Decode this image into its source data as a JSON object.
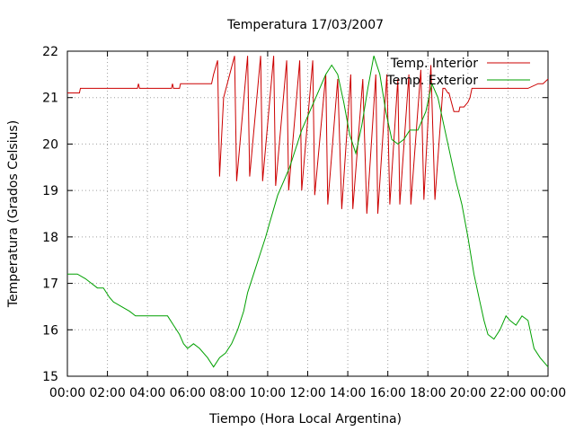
{
  "chart_data": {
    "type": "line",
    "title": "Temperatura 17/03/2007",
    "xlabel": "Tiempo (Hora Local Argentina)",
    "ylabel": "Temperatura (Grados Celsius)",
    "xlim": [
      0,
      24
    ],
    "ylim": [
      15,
      22
    ],
    "x_ticks": [
      "00:00",
      "02:00",
      "04:00",
      "06:00",
      "08:00",
      "10:00",
      "12:00",
      "14:00",
      "16:00",
      "18:00",
      "20:00",
      "22:00",
      "00:00"
    ],
    "y_ticks": [
      "15",
      "16",
      "17",
      "18",
      "19",
      "20",
      "21",
      "22"
    ],
    "grid": true,
    "legend_position": "top-right",
    "series": [
      {
        "name": "Temp. Interior",
        "color": "#cc0000",
        "x": [
          0,
          0.6,
          0.65,
          2.0,
          3.5,
          3.55,
          3.6,
          5.2,
          5.25,
          5.3,
          5.6,
          5.65,
          5.8,
          7.2,
          7.25,
          7.3,
          7.5,
          7.55,
          7.6,
          7.8,
          8.35,
          8.45,
          9.0,
          9.1,
          9.65,
          9.75,
          10.3,
          10.4,
          10.95,
          11.05,
          11.6,
          11.7,
          12.25,
          12.35,
          12.9,
          13.0,
          13.5,
          13.7,
          14.15,
          14.25,
          14.75,
          14.95,
          15.4,
          15.5,
          15.95,
          16.1,
          16.5,
          16.6,
          17.05,
          17.15,
          17.65,
          17.8,
          18.15,
          18.35,
          18.75,
          18.85,
          19.0,
          19.05,
          19.3,
          19.55,
          19.6,
          19.8,
          20.0,
          20.1,
          20.2,
          21.0,
          22.0,
          23.0,
          23.5,
          23.75,
          24.0
        ],
        "values": [
          21.1,
          21.1,
          21.2,
          21.2,
          21.2,
          21.3,
          21.2,
          21.2,
          21.3,
          21.2,
          21.2,
          21.3,
          21.3,
          21.3,
          21.4,
          21.5,
          21.8,
          20.5,
          19.3,
          21.0,
          21.9,
          19.2,
          21.9,
          19.3,
          21.9,
          19.2,
          21.9,
          19.1,
          21.8,
          19.0,
          21.8,
          19.0,
          21.8,
          18.9,
          21.5,
          18.7,
          21.4,
          18.6,
          21.5,
          18.6,
          21.4,
          18.5,
          21.5,
          18.5,
          21.5,
          18.7,
          21.4,
          18.7,
          21.5,
          18.7,
          21.6,
          18.8,
          21.7,
          18.8,
          21.2,
          21.2,
          21.1,
          21.1,
          20.7,
          20.7,
          20.8,
          20.8,
          20.9,
          21.0,
          21.2,
          21.2,
          21.2,
          21.2,
          21.3,
          21.3,
          21.4
        ]
      },
      {
        "name": "Temp. Exterior",
        "color": "#00a000",
        "x": [
          0,
          0.5,
          0.9,
          1.5,
          1.8,
          2.1,
          2.3,
          2.7,
          3.1,
          3.4,
          4.0,
          4.5,
          5.0,
          5.3,
          5.6,
          5.8,
          6.0,
          6.3,
          6.6,
          7.0,
          7.3,
          7.6,
          7.9,
          8.2,
          8.5,
          8.8,
          9.0,
          9.3,
          9.6,
          9.9,
          10.1,
          10.3,
          10.5,
          10.8,
          11.1,
          11.4,
          11.7,
          12.0,
          12.3,
          12.6,
          12.9,
          13.2,
          13.5,
          13.8,
          14.1,
          14.4,
          14.7,
          15.0,
          15.3,
          15.6,
          15.9,
          16.2,
          16.5,
          16.8,
          17.1,
          17.5,
          17.9,
          18.2,
          18.5,
          18.8,
          19.1,
          19.4,
          19.7,
          20.0,
          20.3,
          20.6,
          20.8,
          21.0,
          21.3,
          21.6,
          21.9,
          22.1,
          22.4,
          22.7,
          23.0,
          23.3,
          23.6,
          24.0
        ],
        "values": [
          17.2,
          17.2,
          17.1,
          16.9,
          16.9,
          16.7,
          16.6,
          16.5,
          16.4,
          16.3,
          16.3,
          16.3,
          16.3,
          16.1,
          15.9,
          15.7,
          15.6,
          15.7,
          15.6,
          15.4,
          15.2,
          15.4,
          15.5,
          15.7,
          16.0,
          16.4,
          16.8,
          17.2,
          17.6,
          18.0,
          18.3,
          18.6,
          18.9,
          19.2,
          19.5,
          19.9,
          20.3,
          20.6,
          20.9,
          21.2,
          21.5,
          21.7,
          21.5,
          20.9,
          20.2,
          19.8,
          20.4,
          21.2,
          21.9,
          21.5,
          20.7,
          20.1,
          20.0,
          20.1,
          20.3,
          20.3,
          20.7,
          21.3,
          21.0,
          20.4,
          19.8,
          19.2,
          18.7,
          18.0,
          17.2,
          16.6,
          16.2,
          15.9,
          15.8,
          16.0,
          16.3,
          16.2,
          16.1,
          16.3,
          16.2,
          15.6,
          15.4,
          15.2
        ]
      }
    ]
  }
}
